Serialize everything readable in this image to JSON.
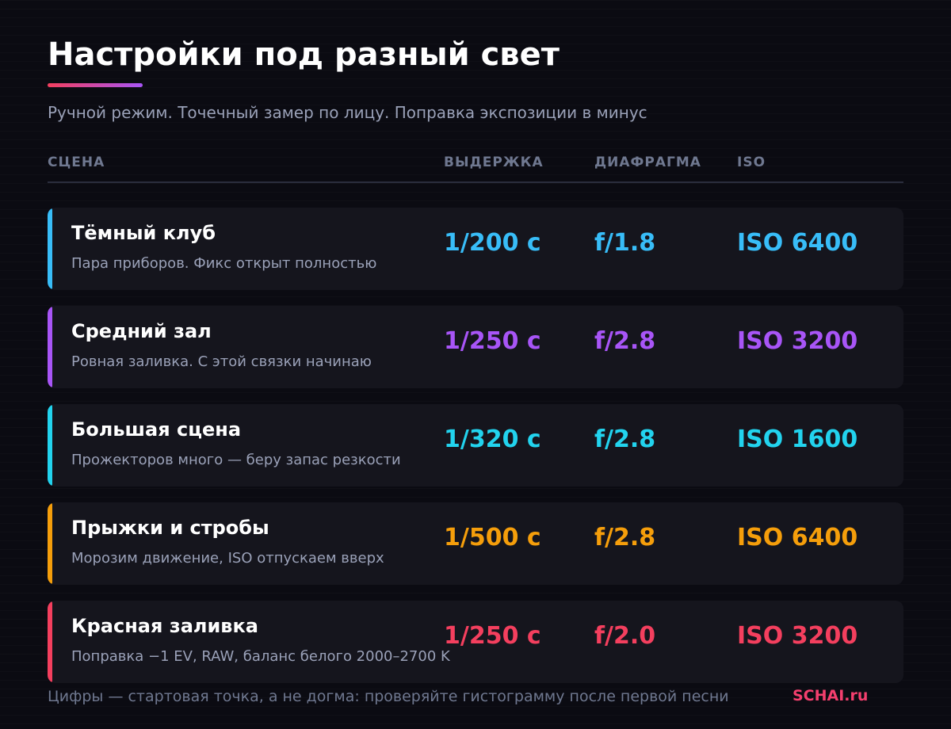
{
  "title": "Настройки под разный свет",
  "subtitle": "Ручной режим. Точечный замер по лицу. Поправка экспозиции в минус",
  "columns": {
    "scene": "СЦЕНА",
    "shutter": "ВЫДЕРЖКА",
    "aperture": "ДИАФРАГМА",
    "iso": "ISO"
  },
  "colors": {
    "background": "#0b0b12",
    "card": "#15151d",
    "accent_gradient": [
      "#f43f5e",
      "#a855f7"
    ],
    "brand": "#f43f6e"
  },
  "rows": [
    {
      "name": "Тёмный клуб",
      "note": "Пара приборов. Фикс открыт полностью",
      "shutter": "1/200 с",
      "aperture": "f/1.8",
      "iso": "ISO 6400",
      "color": "#38bdf8"
    },
    {
      "name": "Средний зал",
      "note": "Ровная заливка. С этой связки начинаю",
      "shutter": "1/250 с",
      "aperture": "f/2.8",
      "iso": "ISO 3200",
      "color": "#a855f7"
    },
    {
      "name": "Большая сцена",
      "note": "Прожекторов много — беру запас резкости",
      "shutter": "1/320 с",
      "aperture": "f/2.8",
      "iso": "ISO 1600",
      "color": "#22d3ee"
    },
    {
      "name": "Прыжки и стробы",
      "note": "Морозим движение, ISO отпускаем вверх",
      "shutter": "1/500 с",
      "aperture": "f/2.8",
      "iso": "ISO 6400",
      "color": "#f59e0b"
    },
    {
      "name": "Красная заливка",
      "note": "Поправка −1 EV, RAW, баланс белого 2000–2700 K",
      "shutter": "1/250 с",
      "aperture": "f/2.0",
      "iso": "ISO 3200",
      "color": "#f43f5e"
    }
  ],
  "footer": {
    "note": "Цифры — стартовая точка, а не догма: проверяйте гистограмму после первой песни",
    "brand": "SCHAI.ru"
  }
}
